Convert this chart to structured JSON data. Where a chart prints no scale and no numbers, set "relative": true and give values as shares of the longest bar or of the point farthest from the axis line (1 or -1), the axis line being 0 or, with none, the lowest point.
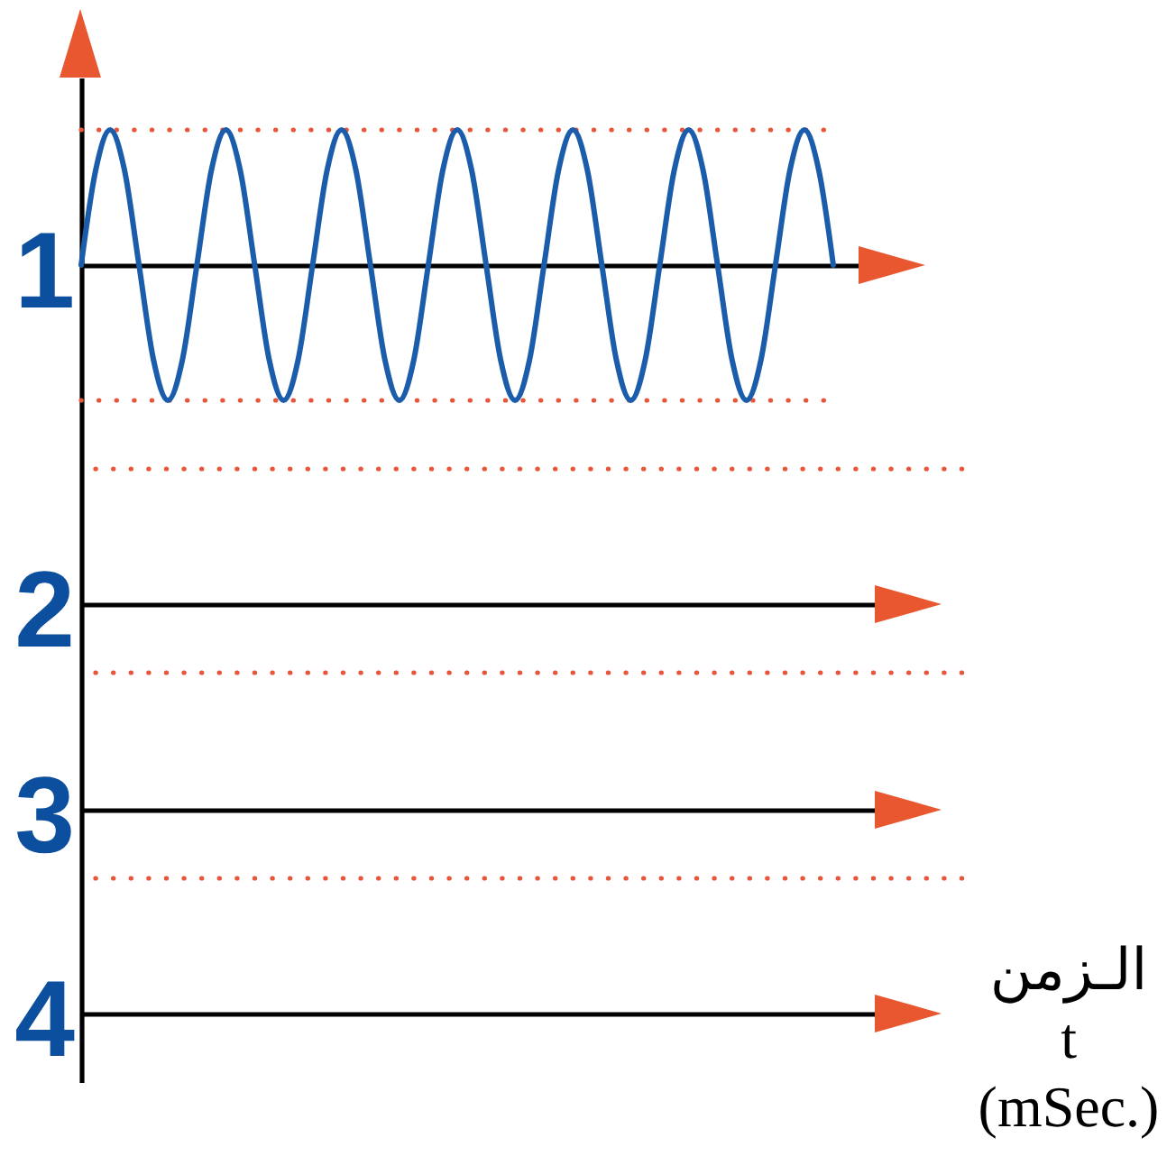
{
  "chart_data": [
    {
      "type": "line",
      "ylabel": "1",
      "relative": true,
      "categories": [
        null,
        null,
        null,
        null,
        null,
        null,
        null,
        null,
        null,
        null,
        null,
        null,
        null,
        null,
        null,
        null,
        null,
        null,
        null,
        null,
        null,
        null,
        null,
        null,
        null,
        null,
        null,
        null,
        null,
        null,
        null,
        null,
        null,
        null,
        null,
        null,
        null,
        null,
        null,
        null,
        null,
        null,
        null,
        null,
        null,
        null,
        null,
        null,
        null,
        null,
        null,
        null,
        null
      ],
      "series": [
        {
          "color": "#1b5dab",
          "values": [
            0,
            0.7,
            1,
            0.7,
            0,
            -0.7,
            -1,
            -0.7,
            0,
            0.7,
            1,
            0.7,
            0,
            -0.7,
            -1,
            -0.7,
            0,
            0.7,
            1,
            0.7,
            0,
            -0.7,
            -1,
            -0.7,
            0,
            0.7,
            1,
            0.7,
            0,
            -0.7,
            -1,
            -0.7,
            0,
            0.7,
            1,
            0.7,
            0,
            -0.7,
            -1,
            -0.7,
            0,
            0.7,
            1,
            0.7,
            0,
            -0.7,
            -1,
            -0.7,
            0,
            0.7,
            1,
            0.7,
            0
          ]
        }
      ],
      "ref_lines": [
        {
          "axis": "y",
          "value": 1,
          "color": "#e8563a",
          "line_style": "dotted"
        },
        {
          "axis": "y",
          "value": -1,
          "color": "#e8563a",
          "line_style": "dotted"
        }
      ]
    },
    {
      "type": "other",
      "ylabel": "2"
    },
    {
      "type": "other",
      "ylabel": "3"
    },
    {
      "type": "other",
      "ylabel": "4",
      "xlabel": "الـزمن\nt\n(mSec.)"
    }
  ]
}
